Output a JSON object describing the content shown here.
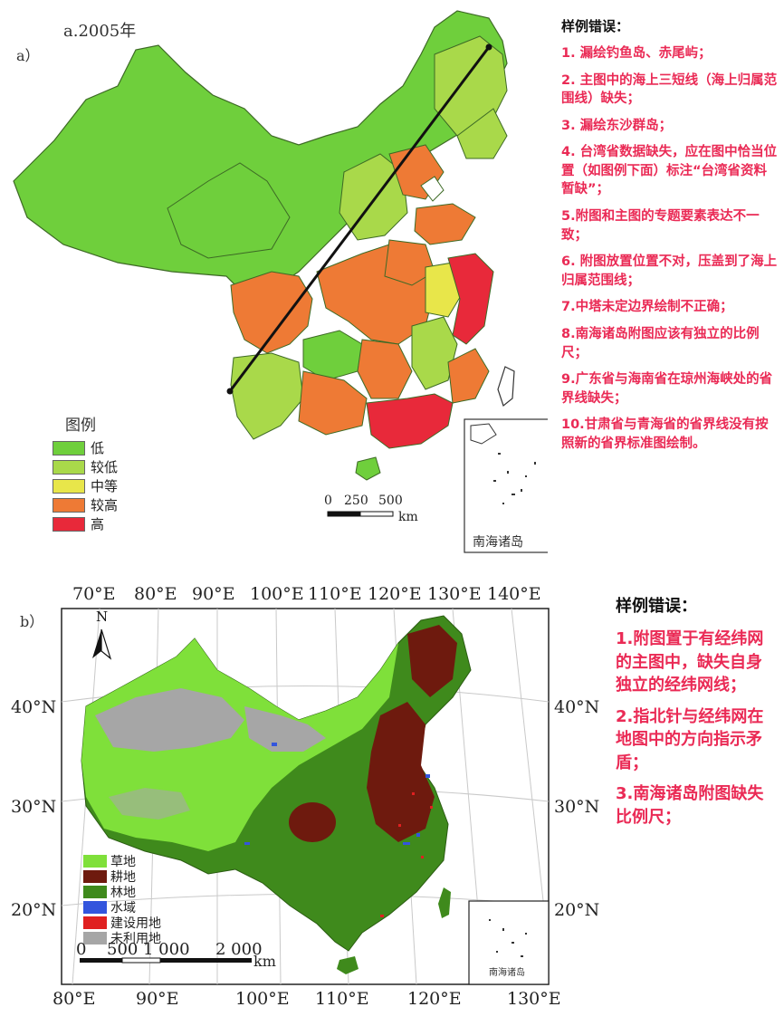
{
  "panel_a": {
    "panel_label": "a）",
    "map_title": "a.2005年",
    "legend": {
      "title": "图例",
      "items": [
        {
          "label": "低",
          "color": "#6fcf3c"
        },
        {
          "label": "较低",
          "color": "#a9d94a"
        },
        {
          "label": "中等",
          "color": "#e8e64a"
        },
        {
          "label": "较高",
          "color": "#ee7a35"
        },
        {
          "label": "高",
          "color": "#e8293a"
        }
      ]
    },
    "scale": {
      "ticks": [
        "0",
        "250",
        "500"
      ],
      "unit": "km"
    },
    "inset_label": "南海诸岛",
    "side_title": "样例错误：",
    "errors": [
      "1. 漏绘钓鱼岛、赤尾屿；",
      "2. 主图中的海上三短线（海上归属范围线）缺失；",
      "3. 漏绘东沙群岛；",
      "4. 台湾省数据缺失，应在图中恰当位置（如图例下面）标注“台湾省资料暂缺”；",
      "5.附图和主图的专题要素表达不一致；",
      "6. 附图放置位置不对，压盖到了海上归属范围线；",
      "7.中塔未定边界绘制不正确；",
      "8.南海诸岛附图应该有独立的比例尺；",
      "9.广东省与海南省在琼州海峡处的省界线缺失；",
      "10.甘肃省与青海省的省界线没有按照新的省界标准图绘制。"
    ]
  },
  "panel_b": {
    "panel_label": "b）",
    "top_lon_labels": [
      "70°E",
      "80°E",
      "90°E",
      "100°E",
      "110°E",
      "120°E",
      "130°E",
      "140°E"
    ],
    "bottom_lon_labels": [
      "80°E",
      "90°E",
      "100°E",
      "110°E",
      "120°E",
      "130°E"
    ],
    "left_lat_labels": [
      "40°N",
      "30°N",
      "20°N"
    ],
    "right_lat_labels": [
      "40°N",
      "30°N",
      "20°N"
    ],
    "north_label": "N",
    "legend": {
      "items": [
        {
          "label": "草地",
          "color": "#7fe03a"
        },
        {
          "label": "耕地",
          "color": "#6e1a0e"
        },
        {
          "label": "林地",
          "color": "#3f8a1c"
        },
        {
          "label": "水域",
          "color": "#3355dd"
        },
        {
          "label": "建设用地",
          "color": "#e02020"
        },
        {
          "label": "未利用地",
          "color": "#a6a6a6"
        }
      ]
    },
    "scale": {
      "ticks": [
        "0",
        "500",
        "1 000",
        "2 000"
      ],
      "unit": "km"
    },
    "inset_label": "南海诸岛",
    "side_title": "样例错误：",
    "errors": [
      "1.附图置于有经纬网的主图中，缺失自身独立的经纬网线；",
      "2.指北针与经纬网在地图中的方向指示矛盾；",
      "3.南海诸岛附图缺失比例尺；"
    ]
  }
}
